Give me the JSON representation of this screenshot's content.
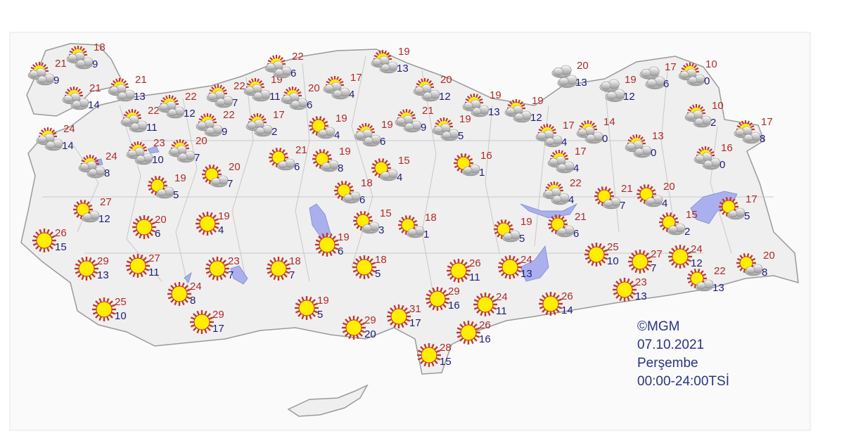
{
  "caption": {
    "copyright": "©MGM",
    "date": "07.10.2021",
    "weekday": "Perşembe",
    "period": "00:00-24:00TSİ"
  },
  "colors": {
    "max_temp": "#b02a2a",
    "min_temp": "#1c1c7a",
    "land": "#efefef",
    "water": "#aab0ee",
    "sun": "#ffee00",
    "sun_rays": "#c0392b"
  },
  "stations": [
    {
      "icon": "partly-cloudy-icon",
      "max": "18",
      "min": "9"
    },
    {
      "icon": "partly-cloudy-icon",
      "max": "21",
      "min": "9"
    },
    {
      "icon": "partly-cloudy-icon",
      "max": "21",
      "min": "14"
    },
    {
      "icon": "partly-cloudy-icon",
      "max": "21",
      "min": "13"
    },
    {
      "icon": "partly-cloudy-icon",
      "max": "22",
      "min": "11"
    },
    {
      "icon": "partly-cloudy-icon",
      "max": "22",
      "min": "12"
    },
    {
      "icon": "partly-cloudy-icon",
      "max": "22",
      "min": "7"
    },
    {
      "icon": "partly-cloudy-icon",
      "max": "22",
      "min": "9"
    },
    {
      "icon": "partly-cloudy-icon",
      "max": "19",
      "min": "11"
    },
    {
      "icon": "partly-cloudy-icon",
      "max": "17",
      "min": "2"
    },
    {
      "icon": "partly-cloudy-icon",
      "max": "22",
      "min": "6"
    },
    {
      "icon": "partly-cloudy-icon",
      "max": "20",
      "min": "6"
    },
    {
      "icon": "partly-cloudy-icon",
      "max": "17",
      "min": "4"
    },
    {
      "icon": "partly-cloudy-icon",
      "max": "19",
      "min": "13"
    },
    {
      "icon": "partly-cloudy-icon",
      "max": "20",
      "min": "12"
    },
    {
      "icon": "partly-cloudy-icon",
      "max": "19",
      "min": "13"
    },
    {
      "icon": "partly-cloudy-icon",
      "max": "19",
      "min": "12"
    },
    {
      "icon": "partly-cloudy-icon",
      "max": "24",
      "min": "14"
    },
    {
      "icon": "partly-cloudy-icon",
      "max": "23",
      "min": "10"
    },
    {
      "icon": "partly-cloudy-icon",
      "max": "20",
      "min": "7"
    },
    {
      "icon": "partly-cloudy-icon",
      "max": "24",
      "min": "8"
    },
    {
      "icon": "sun-small-cloud-icon",
      "max": "19",
      "min": "4"
    },
    {
      "icon": "partly-cloudy-icon",
      "max": "19",
      "min": "6"
    },
    {
      "icon": "partly-cloudy-icon",
      "max": "21",
      "min": "9"
    },
    {
      "icon": "partly-cloudy-icon",
      "max": "19",
      "min": "5"
    },
    {
      "icon": "sun-small-cloud-icon",
      "max": "21",
      "min": "6"
    },
    {
      "icon": "sun-small-cloud-icon",
      "max": "19",
      "min": "8"
    },
    {
      "icon": "sun-small-cloud-icon",
      "max": "15",
      "min": "4"
    },
    {
      "icon": "sun-small-cloud-icon",
      "max": "16",
      "min": "1"
    },
    {
      "icon": "sun-small-cloud-icon",
      "max": "19",
      "min": "5"
    },
    {
      "icon": "sun-small-cloud-icon",
      "max": "20",
      "min": "7"
    },
    {
      "icon": "sun-small-cloud-icon",
      "max": "18",
      "min": "6"
    },
    {
      "icon": "sun-small-cloud-icon",
      "max": "27",
      "min": "12"
    },
    {
      "icon": "sun-small-cloud-icon",
      "max": "15",
      "min": "3"
    },
    {
      "icon": "sun-small-cloud-icon",
      "max": "18",
      "min": "1"
    },
    {
      "icon": "cloudy-icon",
      "max": "20",
      "min": "13"
    },
    {
      "icon": "cloudy-icon",
      "max": "19",
      "min": "12"
    },
    {
      "icon": "cloudy-icon",
      "max": "17",
      "min": "6"
    },
    {
      "icon": "partly-cloudy-icon",
      "max": "10",
      "min": "0"
    },
    {
      "icon": "partly-cloudy-icon",
      "max": "10",
      "min": "2"
    },
    {
      "icon": "partly-cloudy-icon",
      "max": "17",
      "min": "8"
    },
    {
      "icon": "partly-cloudy-icon",
      "max": "16",
      "min": "0"
    },
    {
      "icon": "partly-cloudy-icon",
      "max": "13",
      "min": "0"
    },
    {
      "icon": "partly-cloudy-icon",
      "max": "17",
      "min": "4"
    },
    {
      "icon": "partly-cloudy-icon",
      "max": "14",
      "min": "0"
    },
    {
      "icon": "partly-cloudy-icon",
      "max": "17",
      "min": "4"
    },
    {
      "icon": "partly-cloudy-icon",
      "max": "22",
      "min": "4"
    },
    {
      "icon": "sun-small-cloud-icon",
      "max": "21",
      "min": "7"
    },
    {
      "icon": "sun-small-cloud-icon",
      "max": "20",
      "min": "4"
    },
    {
      "icon": "sun-small-cloud-icon",
      "max": "17",
      "min": "5"
    },
    {
      "icon": "sun-small-cloud-icon",
      "max": "15",
      "min": "2"
    },
    {
      "icon": "sun-small-cloud-icon",
      "max": "19",
      "min": "5"
    },
    {
      "icon": "sun-small-cloud-icon",
      "max": "21",
      "min": "6"
    },
    {
      "icon": "sunny-icon",
      "max": "26",
      "min": "15"
    },
    {
      "icon": "sunny-icon",
      "max": "20",
      "min": "6"
    },
    {
      "icon": "sunny-icon",
      "max": "19",
      "min": "4"
    },
    {
      "icon": "sunny-icon",
      "max": "19",
      "min": "6"
    },
    {
      "icon": "sunny-icon",
      "max": "29",
      "min": "13"
    },
    {
      "icon": "sunny-icon",
      "max": "27",
      "min": "11"
    },
    {
      "icon": "sunny-icon",
      "max": "23",
      "min": "7"
    },
    {
      "icon": "sunny-icon",
      "max": "18",
      "min": "7"
    },
    {
      "icon": "sunny-icon",
      "max": "18",
      "min": "5"
    },
    {
      "icon": "sunny-icon",
      "max": "24",
      "min": "8"
    },
    {
      "icon": "sunny-icon",
      "max": "25",
      "min": "10"
    },
    {
      "icon": "sunny-icon",
      "max": "29",
      "min": "17"
    },
    {
      "icon": "sunny-icon",
      "max": "19",
      "min": "5"
    },
    {
      "icon": "sunny-icon",
      "max": "29",
      "min": "20"
    },
    {
      "icon": "sunny-icon",
      "max": "31",
      "min": "17"
    },
    {
      "icon": "sunny-icon",
      "max": "26",
      "min": "11"
    },
    {
      "icon": "sunny-icon",
      "max": "24",
      "min": "13"
    },
    {
      "icon": "sunny-icon",
      "max": "29",
      "min": "16"
    },
    {
      "icon": "sunny-icon",
      "max": "24",
      "min": "11"
    },
    {
      "icon": "sunny-icon",
      "max": "26",
      "min": "14"
    },
    {
      "icon": "sunny-icon",
      "max": "26",
      "min": "16"
    },
    {
      "icon": "sunny-icon",
      "max": "28",
      "min": "15"
    },
    {
      "icon": "sunny-icon",
      "max": "25",
      "min": "10"
    },
    {
      "icon": "sunny-icon",
      "max": "27",
      "min": "7"
    },
    {
      "icon": "sunny-icon",
      "max": "24",
      "min": "12"
    },
    {
      "icon": "sunny-icon",
      "max": "23",
      "min": "13"
    },
    {
      "icon": "sun-small-cloud-icon",
      "max": "22",
      "min": "13"
    },
    {
      "icon": "sun-small-cloud-icon",
      "max": "20",
      "min": "8"
    }
  ]
}
